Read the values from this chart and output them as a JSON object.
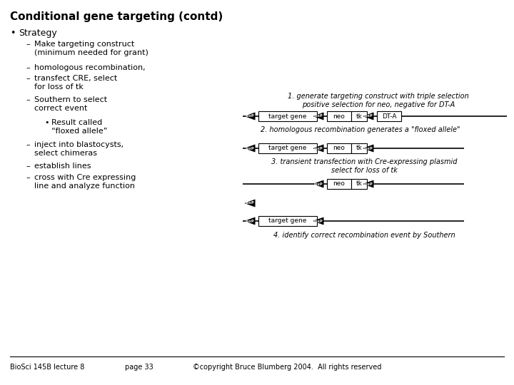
{
  "title": "Conditional gene targeting (contd)",
  "bg_color": "#ffffff",
  "text_color": "#000000",
  "footer_left": "BioSci 145B lecture 8",
  "footer_mid": "page 33",
  "footer_right": "©copyright Bruce Blumberg 2004.  All rights reserved",
  "diagram_label1": "1. generate targeting construct with triple selection\npositive selection for neo, negative for DT-A",
  "diagram_label2": "2. homologous recombination generates a \"floxed allele\"",
  "diagram_label3": "3. transient transfection with Cre-expressing plasmid\nselect for loss of tk",
  "diagram_label4": "4. identify correct recombination event by Southern",
  "title_fontsize": 11,
  "body_fontsize": 9,
  "diagram_fontsize": 7,
  "footer_fontsize": 7
}
